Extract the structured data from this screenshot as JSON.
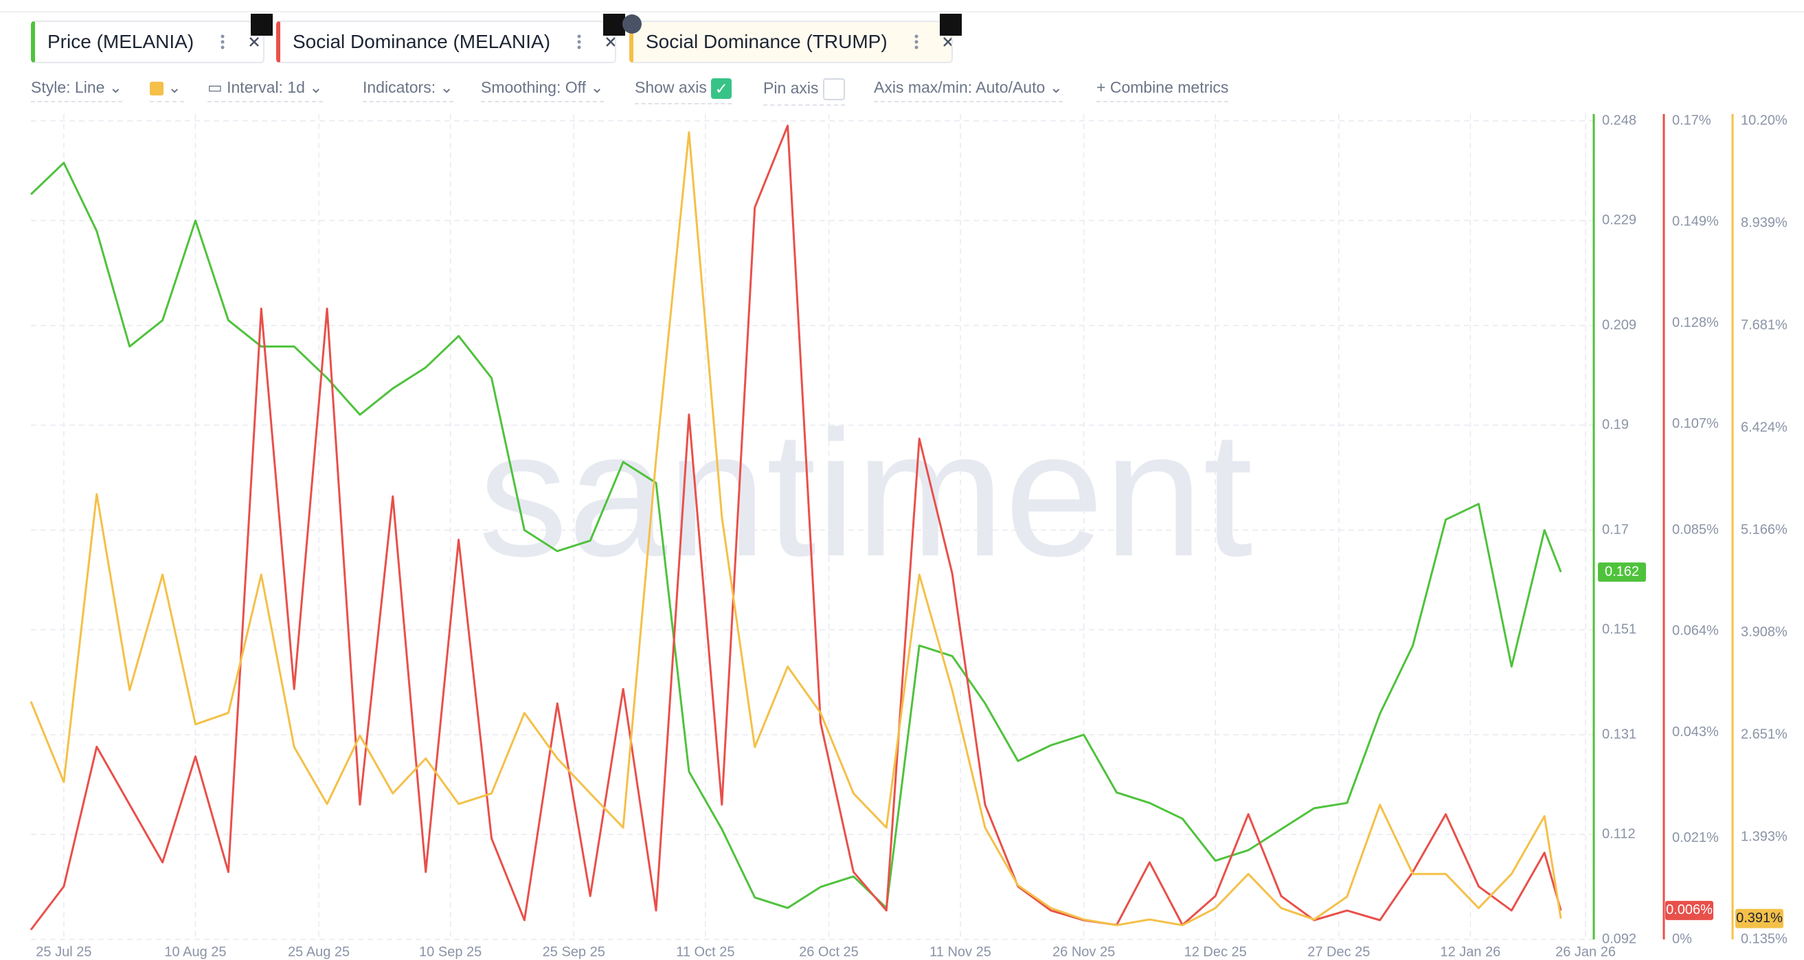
{
  "toolbar": {
    "style": "Style: Line",
    "interval": "Interval: 1d",
    "indicators": "Indicators:",
    "smoothing": "Smoothing: Off",
    "show_axis": "Show axis",
    "pin_axis": "Pin axis",
    "axis_range": "Axis max/min: Auto/Auto",
    "combine": "Combine metrics"
  },
  "chart_data": {
    "type": "line",
    "watermark": "santiment",
    "grid": true,
    "x": [
      "2025-07-21",
      "2025-07-25",
      "2025-07-29",
      "2025-08-02",
      "2025-08-06",
      "2025-08-10",
      "2025-08-14",
      "2025-08-18",
      "2025-08-22",
      "2025-08-26",
      "2025-08-30",
      "2025-09-03",
      "2025-09-07",
      "2025-09-11",
      "2025-09-15",
      "2025-09-19",
      "2025-09-23",
      "2025-09-27",
      "2025-10-01",
      "2025-10-05",
      "2025-10-09",
      "2025-10-13",
      "2025-10-17",
      "2025-10-21",
      "2025-10-25",
      "2025-10-29",
      "2025-11-02",
      "2025-11-06",
      "2025-11-10",
      "2025-11-14",
      "2025-11-18",
      "2025-11-22",
      "2025-11-26",
      "2025-11-30",
      "2025-12-04",
      "2025-12-08",
      "2025-12-12",
      "2025-12-16",
      "2025-12-20",
      "2025-12-24",
      "2025-12-28",
      "2026-01-01",
      "2026-01-05",
      "2026-01-09",
      "2026-01-13",
      "2026-01-17",
      "2026-01-21",
      "2026-01-23"
    ],
    "xlim": [
      "2025-07-21",
      "2026-01-27"
    ],
    "xticks": [
      {
        "value": "2025-07-25",
        "label": "25 Jul 25"
      },
      {
        "value": "2025-08-10",
        "label": "10 Aug 25"
      },
      {
        "value": "2025-08-25",
        "label": "25 Aug 25"
      },
      {
        "value": "2025-09-10",
        "label": "10 Sep 25"
      },
      {
        "value": "2025-09-25",
        "label": "25 Sep 25"
      },
      {
        "value": "2025-10-11",
        "label": "11 Oct 25"
      },
      {
        "value": "2025-10-26",
        "label": "26 Oct 25"
      },
      {
        "value": "2025-11-11",
        "label": "11 Nov 25"
      },
      {
        "value": "2025-11-26",
        "label": "26 Nov 25"
      },
      {
        "value": "2025-12-12",
        "label": "12 Dec 25"
      },
      {
        "value": "2025-12-27",
        "label": "27 Dec 25"
      },
      {
        "value": "2026-01-12",
        "label": "12 Jan 26"
      },
      {
        "value": "2026-01-26",
        "label": "26 Jan 26"
      }
    ],
    "ylim": [
      0.092,
      0.248
    ],
    "yticks": [
      0.248,
      0.229,
      0.209,
      0.19,
      0.17,
      0.151,
      0.131,
      0.112,
      0.092
    ],
    "y2lim": [
      0,
      0.17
    ],
    "y2ticks": [
      {
        "value": 0.17,
        "label": "0.17%"
      },
      {
        "value": 0.149,
        "label": "0.149%"
      },
      {
        "value": 0.128,
        "label": "0.128%"
      },
      {
        "value": 0.107,
        "label": "0.107%"
      },
      {
        "value": 0.085,
        "label": "0.085%"
      },
      {
        "value": 0.064,
        "label": "0.064%"
      },
      {
        "value": 0.043,
        "label": "0.043%"
      },
      {
        "value": 0.021,
        "label": "0.021%"
      },
      {
        "value": 0,
        "label": "0%"
      }
    ],
    "y3lim": [
      0.135,
      10.2
    ],
    "y3ticks": [
      {
        "value": 10.2,
        "label": "10.20%"
      },
      {
        "value": 8.939,
        "label": "8.939%"
      },
      {
        "value": 7.681,
        "label": "7.681%"
      },
      {
        "value": 6.424,
        "label": "6.424%"
      },
      {
        "value": 5.166,
        "label": "5.166%"
      },
      {
        "value": 3.908,
        "label": "3.908%"
      },
      {
        "value": 2.651,
        "label": "2.651%"
      },
      {
        "value": 1.393,
        "label": "1.393%"
      },
      {
        "value": 0.135,
        "label": "0.135%"
      }
    ],
    "series": [
      {
        "name": "Price (MELANIA)",
        "color": "#4fc23c",
        "axis": "y",
        "last_label": "0.162",
        "values": [
          0.234,
          0.24,
          0.227,
          0.205,
          0.21,
          0.229,
          0.21,
          0.205,
          0.205,
          0.199,
          0.192,
          0.197,
          0.201,
          0.207,
          0.199,
          0.17,
          0.166,
          0.168,
          0.183,
          0.179,
          0.124,
          0.113,
          0.1,
          0.098,
          0.102,
          0.104,
          0.098,
          0.148,
          0.146,
          0.137,
          0.126,
          0.129,
          0.131,
          0.12,
          0.118,
          0.115,
          0.107,
          0.109,
          0.113,
          0.117,
          0.118,
          0.135,
          0.148,
          0.172,
          0.175,
          0.144,
          0.17,
          0.162
        ]
      },
      {
        "name": "Social Dominance (MELANIA)",
        "color": "#e8504a",
        "axis": "y2",
        "last_label": "0.006%",
        "values": [
          0.002,
          0.011,
          0.04,
          0.028,
          0.016,
          0.038,
          0.014,
          0.131,
          0.052,
          0.131,
          0.028,
          0.092,
          0.014,
          0.083,
          0.021,
          0.004,
          0.049,
          0.009,
          0.052,
          0.006,
          0.109,
          0.028,
          0.152,
          0.169,
          0.045,
          0.014,
          0.006,
          0.104,
          0.076,
          0.028,
          0.011,
          0.006,
          0.004,
          0.003,
          0.016,
          0.003,
          0.009,
          0.026,
          0.009,
          0.004,
          0.006,
          0.004,
          0.014,
          0.026,
          0.011,
          0.006,
          0.018,
          0.006
        ]
      },
      {
        "name": "Social Dominance (TRUMP)",
        "color": "#f4c048",
        "axis": "y3",
        "last_label": "0.391%",
        "values": [
          3.06,
          2.07,
          5.61,
          3.2,
          4.62,
          2.78,
          2.92,
          4.62,
          2.5,
          1.8,
          2.64,
          1.93,
          2.36,
          1.8,
          1.93,
          2.92,
          2.36,
          1.93,
          1.51,
          6.04,
          10.06,
          5.33,
          2.5,
          3.49,
          2.92,
          1.93,
          1.51,
          4.62,
          3.2,
          1.51,
          0.8,
          0.52,
          0.38,
          0.31,
          0.38,
          0.31,
          0.52,
          0.94,
          0.52,
          0.38,
          0.66,
          1.79,
          0.94,
          0.94,
          0.52,
          0.94,
          1.65,
          0.391
        ]
      }
    ]
  }
}
